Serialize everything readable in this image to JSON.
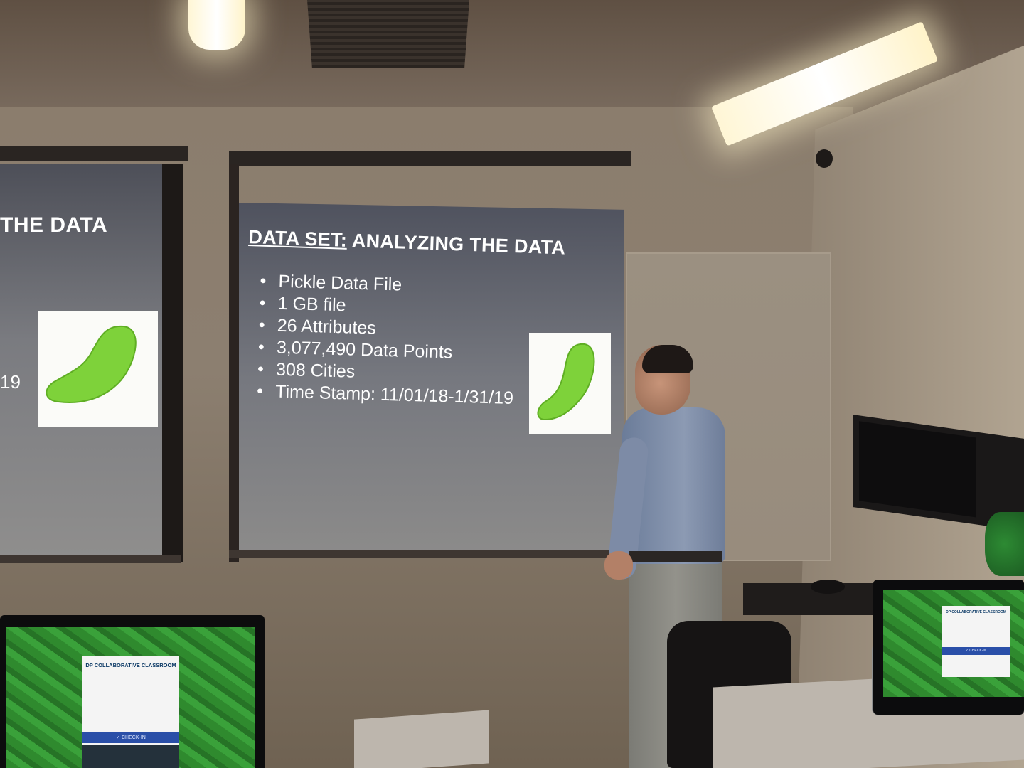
{
  "scene": {
    "description_free": true,
    "colors": {
      "slide_text": "#ffffff",
      "pickle": "#7ed23a",
      "monitor_wallpaper": "#2f8a2e",
      "checkin_bar": "#2a4fa8"
    }
  },
  "center_slide": {
    "title_lead": "DATA SET:",
    "title_rest": " ANALYZING THE DATA",
    "bullets": [
      "Pickle Data File",
      "1 GB file",
      "26 Attributes",
      "3,077,490 Data Points",
      "308 Cities",
      "Time Stamp: 11/01/18-1/31/19"
    ],
    "image_icon": "pickle-icon"
  },
  "left_slide": {
    "title_fragment": "THE DATA",
    "date_fragment": "19",
    "image_icon": "pickle-icon"
  },
  "monitor_left": {
    "login_title": "DP COLLABORATIVE CLASSROOM",
    "checkin_label": "✓ CHECK-IN"
  },
  "monitor_right": {
    "login_title": "DP COLLABORATIVE CLASSROOM",
    "checkin_label": "✓ CHECK-IN"
  }
}
